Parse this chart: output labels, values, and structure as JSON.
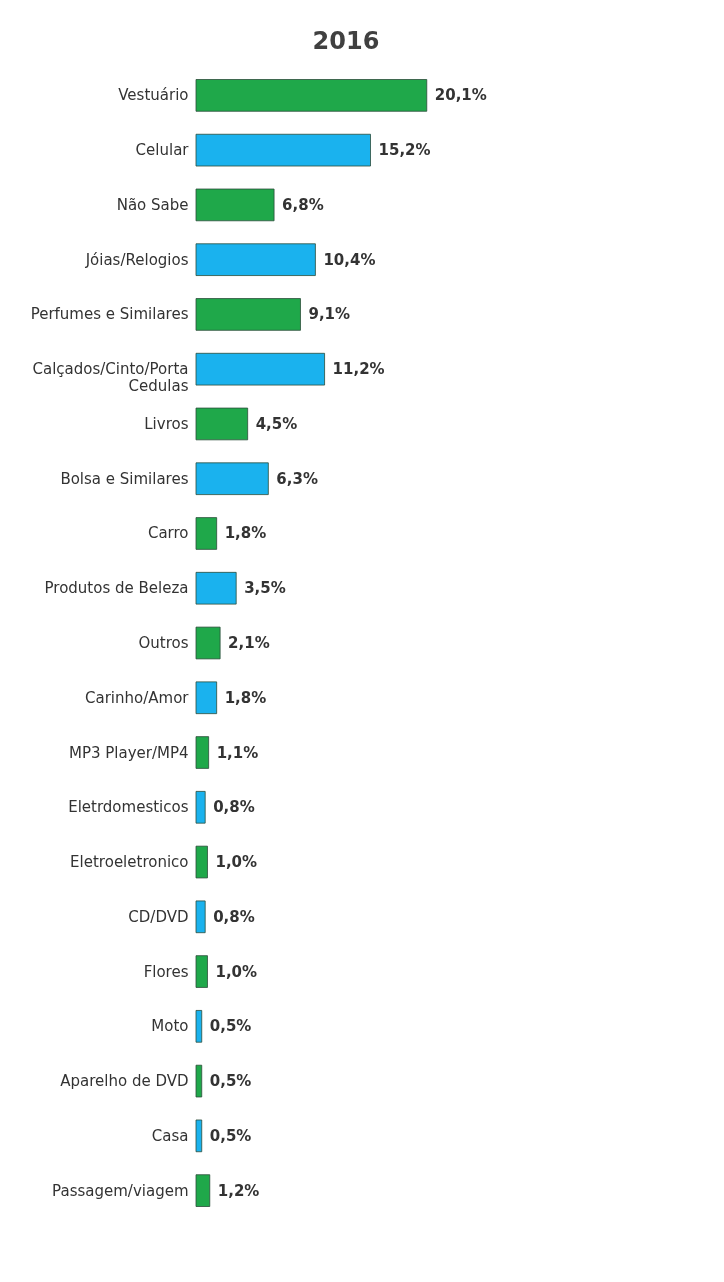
{
  "chart_data": {
    "type": "bar",
    "orientation": "horizontal",
    "title": "2016",
    "categories": [
      "Vestuário",
      "Celular",
      "Não Sabe",
      "Jóias/Relogios",
      "Perfumes e Similares",
      "Calçados/Cinto/Porta Cedulas",
      "Livros",
      "Bolsa e Similares",
      "Carro",
      "Produtos de Beleza",
      "Outros",
      "Carinho/Amor",
      "MP3 Player/MP4",
      "Eletrdomesticos",
      "Eletroeletronico",
      "CD/DVD",
      "Flores",
      "Moto",
      "Aparelho de DVD",
      "Casa",
      "Passagem/viagem"
    ],
    "values": [
      20.1,
      15.2,
      6.8,
      10.4,
      9.1,
      11.2,
      4.5,
      6.3,
      1.8,
      3.5,
      2.1,
      1.8,
      1.1,
      0.8,
      1.0,
      0.8,
      1.0,
      0.5,
      0.5,
      0.5,
      1.2
    ],
    "colors": [
      "#1fa84a",
      "#1ab2ee",
      "#1fa84a",
      "#1ab2ee",
      "#1fa84a",
      "#1ab2ee",
      "#1fa84a",
      "#1ab2ee",
      "#1fa84a",
      "#1ab2ee",
      "#1fa84a",
      "#1ab2ee",
      "#1fa84a",
      "#1ab2ee",
      "#1fa84a",
      "#1ab2ee",
      "#1fa84a",
      "#1ab2ee",
      "#1fa84a",
      "#1ab2ee",
      "#1fa84a"
    ],
    "value_labels": [
      "20,1%",
      "15,2%",
      "6,8%",
      "10,4%",
      "9,1%",
      "11,2%",
      "4,5%",
      "6,3%",
      "1,8%",
      "3,5%",
      "2,1%",
      "1,8%",
      "1,1%",
      "0,8%",
      "1,0%",
      "0,8%",
      "1,0%",
      "0,5%",
      "0,5%",
      "0,5%",
      "1,2%"
    ],
    "grid": false
  }
}
